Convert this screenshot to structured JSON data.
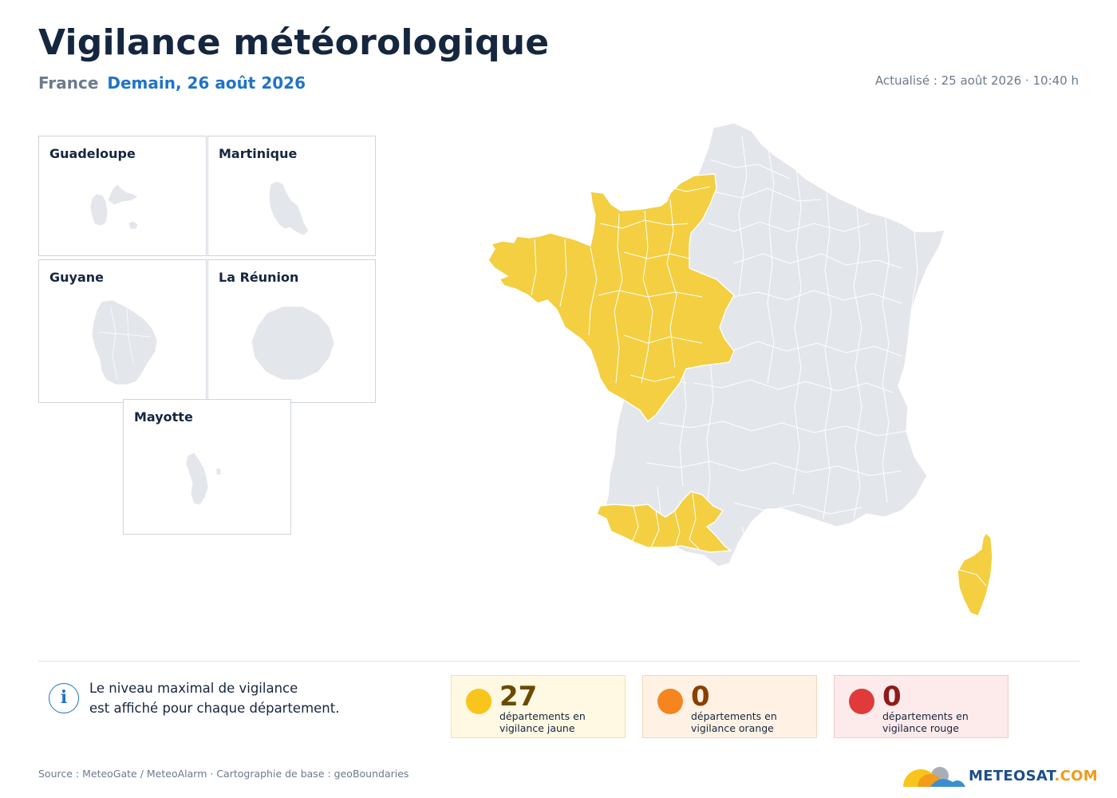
{
  "header": {
    "title": "Vigilance météorologique",
    "country": "France",
    "date": "Demain, 26 août 2026",
    "updated": "Actualisé : 25 août 2026 · 10:40 h"
  },
  "insets": [
    {
      "label": "Guadeloupe"
    },
    {
      "label": "Martinique"
    },
    {
      "label": "Guyane"
    },
    {
      "label": "La Réunion"
    },
    {
      "label": "Mayotte"
    }
  ],
  "legend": {
    "info_line1": "Le niveau maximal de vigilance",
    "info_line2": "est affiché pour chaque département.",
    "yellow": {
      "count": "27",
      "caption1": "départements en",
      "caption2": "vigilance jaune",
      "color": "#f7c51c"
    },
    "orange": {
      "count": "0",
      "caption1": "départements en",
      "caption2": "vigilance orange",
      "color": "#f6851f"
    },
    "red": {
      "count": "0",
      "caption1": "départements en",
      "caption2": "vigilance rouge",
      "color": "#e03a3a"
    }
  },
  "colors": {
    "no_alert": "#e3e6eb",
    "yellow": "#f3cf41",
    "orange": "#f6851f",
    "red": "#e03a3a"
  },
  "footer": {
    "source": "Source : MeteoGate / MeteoAlarm · Cartographie de base : geoBoundaries",
    "brand_main": "METEOSAT",
    "brand_suffix": ".COM"
  }
}
